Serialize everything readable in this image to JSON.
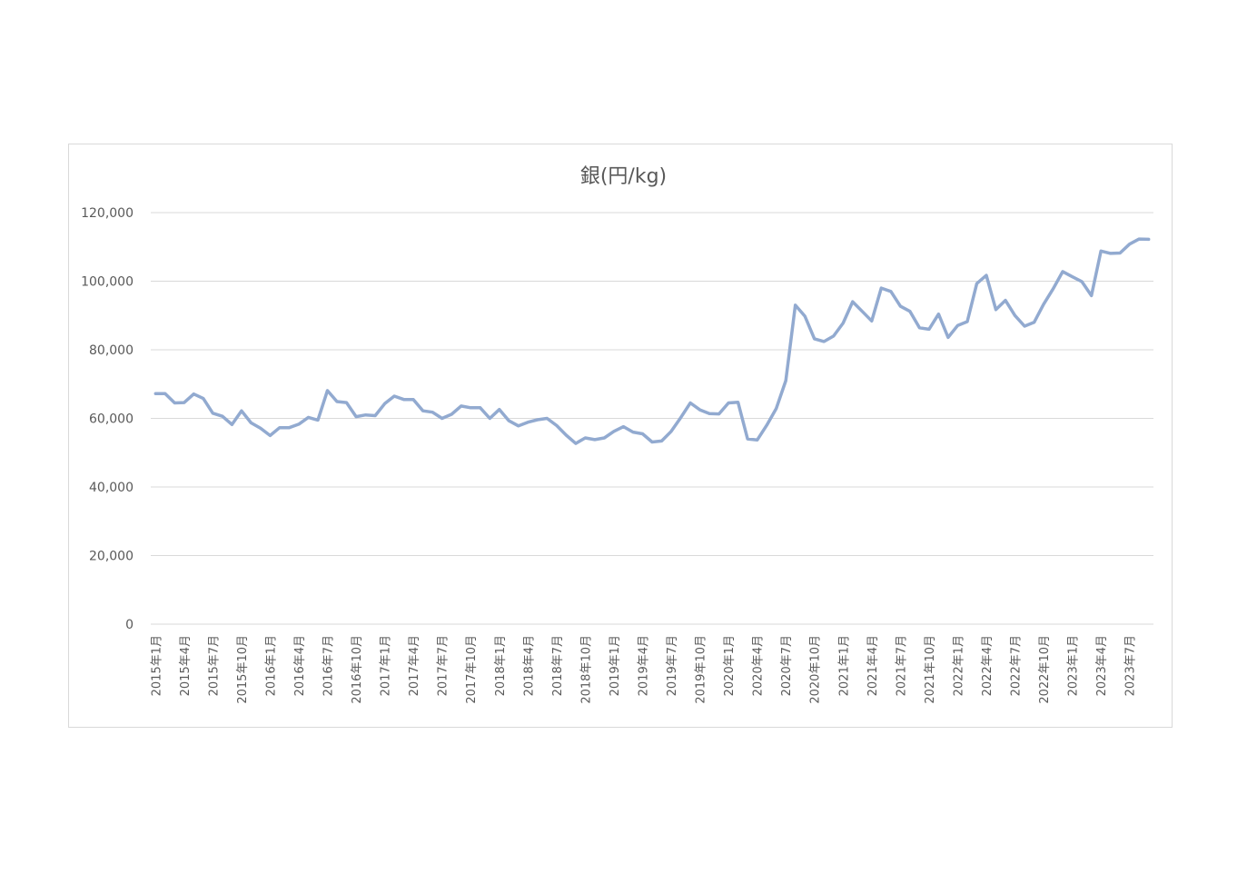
{
  "chart_data": {
    "type": "line",
    "title": "銀(円/kg)",
    "xlabel": "",
    "ylabel": "",
    "ylim": [
      0,
      120000
    ],
    "y_ticks": [
      "0",
      "20,000",
      "40,000",
      "60,000",
      "80,000",
      "100,000",
      "120,000"
    ],
    "grid": true,
    "legend": "none",
    "line_color": "#92AAD0",
    "x_tick_labels": [
      "2015年1月",
      "2015年4月",
      "2015年7月",
      "2015年10月",
      "2016年1月",
      "2016年4月",
      "2016年7月",
      "2016年10月",
      "2017年1月",
      "2017年4月",
      "2017年7月",
      "2017年10月",
      "2018年1月",
      "2018年4月",
      "2018年7月",
      "2018年10月",
      "2019年1月",
      "2019年4月",
      "2019年7月",
      "2019年10月",
      "2020年1月",
      "2020年4月",
      "2020年7月",
      "2020年10月",
      "2021年1月",
      "2021年4月",
      "2021年7月",
      "2021年10月",
      "2022年1月",
      "2022年4月",
      "2022年7月",
      "2022年10月",
      "2023年1月",
      "2023年4月",
      "2023年7月"
    ],
    "x_tick_every": 3,
    "series": [
      {
        "values": [
          67200,
          67200,
          64500,
          64600,
          67100,
          65800,
          61500,
          60600,
          58200,
          62200,
          58700,
          57100,
          55000,
          57300,
          57300,
          58300,
          60300,
          59500,
          68100,
          64900,
          64600,
          60500,
          61000,
          60800,
          64300,
          66500,
          65500,
          65500,
          62200,
          61800,
          60000,
          61200,
          63600,
          63100,
          63100,
          60000,
          62600,
          59300,
          57800,
          58900,
          59600,
          60000,
          57900,
          55100,
          52700,
          54300,
          53800,
          54300,
          56200,
          57600,
          56000,
          55500,
          53100,
          53400,
          56200,
          60200,
          64500,
          62500,
          61400,
          61300,
          64500,
          64700,
          54000,
          53700,
          58000,
          62900,
          71000,
          93000,
          89800,
          83200,
          82400,
          84000,
          87800,
          94000,
          91200,
          88400,
          98000,
          97000,
          92700,
          91200,
          86400,
          86000,
          90400,
          83600,
          87100,
          88200,
          99300,
          101700,
          91700,
          94400,
          90000,
          86900,
          88000,
          93300,
          97800,
          102800,
          101300,
          99900,
          95800,
          108800,
          108100,
          108200,
          110800,
          112300,
          112200
        ]
      }
    ]
  }
}
